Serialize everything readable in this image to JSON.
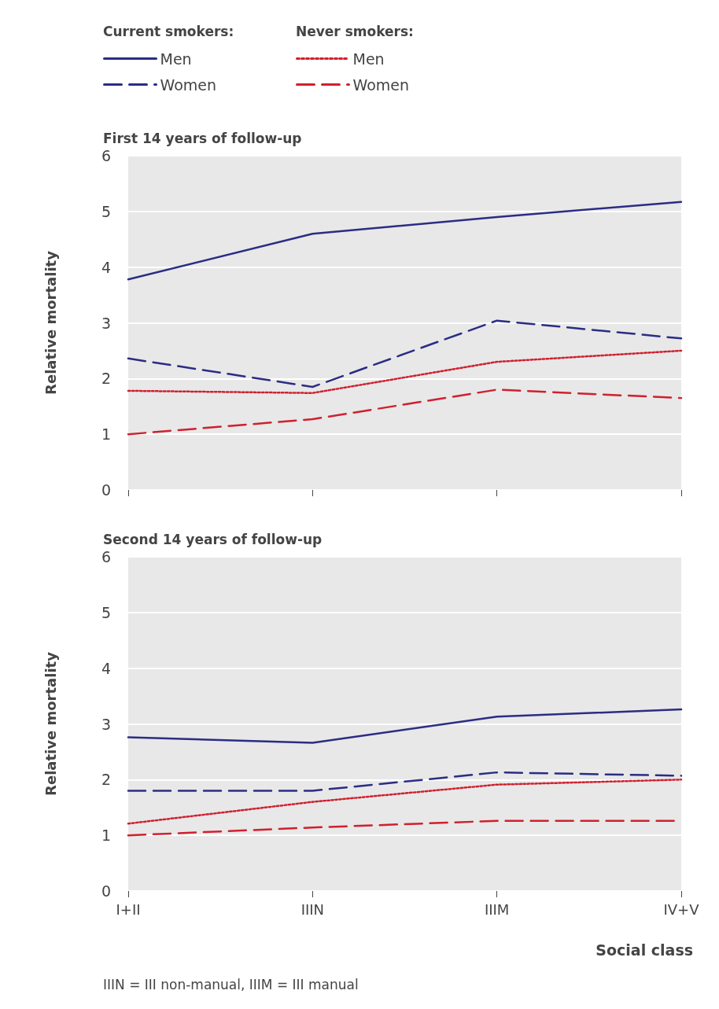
{
  "chart_data": [
    {
      "type": "line",
      "title": "First 14 years of follow-up",
      "ylabel": "Relative mortality",
      "categories": [
        null,
        null,
        null,
        null
      ],
      "series": [
        {
          "name": "Men",
          "color": "#2b2d84",
          "line_style": "solid",
          "values": [
            3.78,
            4.6,
            4.9,
            5.17
          ]
        },
        {
          "name": "Women",
          "color": "#2b2d84",
          "line_style": "dashed",
          "values": [
            2.36,
            1.85,
            3.04,
            2.72
          ]
        },
        {
          "name": "Men",
          "color": "#d0202e",
          "line_style": "dotted",
          "values": [
            1.78,
            1.74,
            2.3,
            2.5
          ]
        },
        {
          "name": "Women",
          "color": "#d0202e",
          "line_style": "dashed",
          "values": [
            1.0,
            1.27,
            1.8,
            1.65
          ]
        }
      ],
      "annotations": [
        "Current smokers:",
        "Never smokers:"
      ],
      "ylim": [
        0,
        6
      ],
      "yticks": [
        0,
        1,
        2,
        3,
        4,
        5,
        6
      ],
      "grid": "y",
      "legend": "top left",
      "marker": "none"
    },
    {
      "type": "line",
      "title": "Second 14 years of follow-up",
      "ylabel": "Relative mortality",
      "xlabel": "Social class",
      "categories": [
        "I+II",
        "IIIN",
        "IIIM",
        "IV+V"
      ],
      "series": [
        {
          "color": "#2b2d84",
          "line_style": "solid",
          "values": [
            2.76,
            2.66,
            3.13,
            3.26
          ]
        },
        {
          "color": "#2b2d84",
          "line_style": "dashed",
          "values": [
            1.8,
            1.8,
            2.13,
            2.07
          ]
        },
        {
          "color": "#d0202e",
          "line_style": "dotted",
          "values": [
            1.21,
            1.6,
            1.91,
            2.0
          ]
        },
        {
          "color": "#d0202e",
          "line_style": "dashed",
          "values": [
            1.0,
            1.14,
            1.26,
            1.26
          ]
        }
      ],
      "annotations": [
        "IIIN = III non-manual, IIIM = III manual"
      ],
      "ylim": [
        0,
        6
      ],
      "yticks": [
        0,
        1,
        2,
        3,
        4,
        5,
        6
      ],
      "grid": "y",
      "marker": "none"
    }
  ]
}
